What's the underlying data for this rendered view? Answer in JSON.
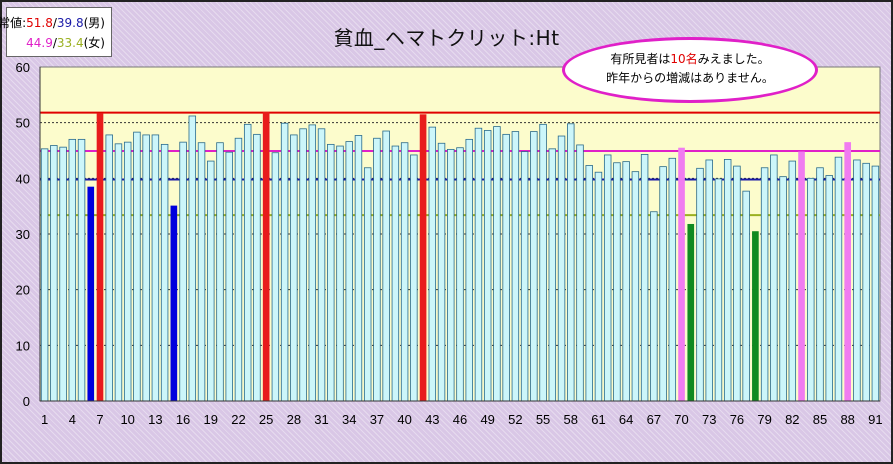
{
  "legend": {
    "label": "正常値:",
    "male_high": "51.8",
    "male_low": "39.8",
    "male_suffix": "(男)",
    "female_high": "44.9",
    "female_low": "33.4",
    "female_suffix": "(女)",
    "slash": "/"
  },
  "note": {
    "line1_pre": "有所見者は",
    "line1_count": "10名",
    "line1_post": "みえました。",
    "line2": "昨年からの増減はありません。"
  },
  "colors": {
    "bar_normal": "#ccf6fa",
    "bar_male_low": "#0000dd",
    "bar_male_high": "#e81c1c",
    "bar_female_low": "#108a20",
    "bar_female_high": "#f07cf0",
    "line_male_high": "#e00000",
    "line_male_low": "#1a1aa8",
    "line_female_high": "#e020c8",
    "line_female_low": "#9ab020",
    "plot_bg": "#fcfccc"
  },
  "chart_data": {
    "type": "bar",
    "title": "貧血_ヘマトクリット:Ht",
    "xlabel": "",
    "ylabel": "",
    "ylim": [
      0,
      60
    ],
    "yticks": [
      0,
      10,
      20,
      30,
      40,
      50,
      60
    ],
    "xtick_labels": [
      "1",
      "4",
      "7",
      "10",
      "13",
      "16",
      "19",
      "22",
      "25",
      "28",
      "31",
      "34",
      "37",
      "40",
      "43",
      "46",
      "49",
      "52",
      "55",
      "58",
      "61",
      "64",
      "67",
      "70",
      "73",
      "76",
      "79",
      "82",
      "85",
      "88",
      "91"
    ],
    "categories": [
      "1",
      "2",
      "3",
      "4",
      "5",
      "6",
      "7",
      "8",
      "9",
      "10",
      "11",
      "12",
      "13",
      "14",
      "15",
      "16",
      "17",
      "18",
      "19",
      "20",
      "21",
      "22",
      "23",
      "24",
      "25",
      "26",
      "27",
      "28",
      "29",
      "30",
      "31",
      "32",
      "33",
      "34",
      "35",
      "36",
      "37",
      "38",
      "39",
      "40",
      "41",
      "42",
      "43",
      "44",
      "45",
      "46",
      "47",
      "48",
      "49",
      "50",
      "51",
      "52",
      "53",
      "54",
      "55",
      "56",
      "57",
      "58",
      "59",
      "60",
      "61",
      "62",
      "63",
      "64",
      "65",
      "66",
      "67",
      "68",
      "69",
      "70",
      "71",
      "72",
      "73",
      "74",
      "75",
      "76",
      "77",
      "78",
      "79",
      "80",
      "81",
      "82",
      "83",
      "84",
      "85",
      "86",
      "87",
      "88",
      "89",
      "90",
      "91"
    ],
    "values": [
      45.3,
      45.9,
      45.6,
      47.0,
      47.0,
      38.5,
      51.7,
      47.8,
      46.2,
      46.5,
      48.3,
      47.8,
      47.8,
      46.1,
      35.1,
      46.5,
      51.2,
      46.4,
      43.1,
      46.4,
      44.7,
      47.2,
      49.7,
      47.9,
      51.9,
      44.6,
      49.9,
      47.8,
      48.9,
      49.6,
      48.9,
      46.1,
      45.8,
      46.6,
      47.7,
      41.9,
      47.2,
      48.5,
      45.8,
      46.4,
      44.2,
      51.5,
      49.2,
      46.3,
      45.2,
      45.5,
      47.0,
      49.0,
      48.6,
      49.3,
      47.9,
      48.4,
      44.8,
      48.4,
      49.7,
      45.3,
      47.6,
      49.8,
      46.0,
      42.3,
      41.1,
      44.2,
      42.8,
      43.0,
      41.2,
      44.3,
      34.0,
      42.1,
      43.6,
      45.5,
      31.8,
      41.8,
      43.3,
      39.9,
      43.4,
      42.2,
      37.7,
      30.5,
      41.9,
      44.2,
      40.3,
      43.1,
      44.8,
      40.0,
      41.9,
      40.5,
      43.8,
      46.5,
      43.3,
      42.7,
      42.2
    ],
    "highlight": {
      "male_low": [
        6,
        15
      ],
      "male_high": [
        7,
        25,
        42
      ],
      "female_low": [
        71,
        78
      ],
      "female_high": [
        70,
        83,
        88
      ]
    },
    "reference_lines": [
      {
        "name": "男 上限",
        "value": 51.8
      },
      {
        "name": "男 下限",
        "value": 39.8
      },
      {
        "name": "女 上限",
        "value": 44.9
      },
      {
        "name": "女 下限",
        "value": 33.4
      }
    ],
    "grid": true
  }
}
